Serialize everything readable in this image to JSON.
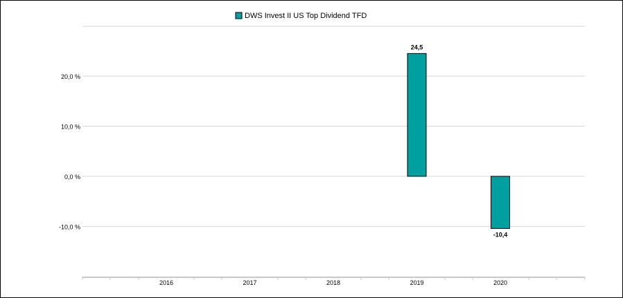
{
  "chart_data": {
    "type": "bar",
    "title": "",
    "xlabel": "",
    "ylabel": "",
    "categories": [
      "2016",
      "2017",
      "2018",
      "2019",
      "2020"
    ],
    "series": [
      {
        "name": "DWS Invest II US Top Dividend  TFD",
        "values": [
          null,
          null,
          null,
          24.5,
          -10.4
        ],
        "value_labels": [
          "",
          "",
          "",
          "24,5",
          "-10,4"
        ],
        "color": "#00a0a0"
      }
    ],
    "ylim": [
      -20,
      30
    ],
    "y_ticks": [
      {
        "value": 20,
        "label": "20,0 %"
      },
      {
        "value": 10,
        "label": "10,0 %"
      },
      {
        "value": 0,
        "label": "0,0 %"
      },
      {
        "value": -10,
        "label": "-10,0 %"
      }
    ],
    "grid": true,
    "legend_position": "top"
  }
}
